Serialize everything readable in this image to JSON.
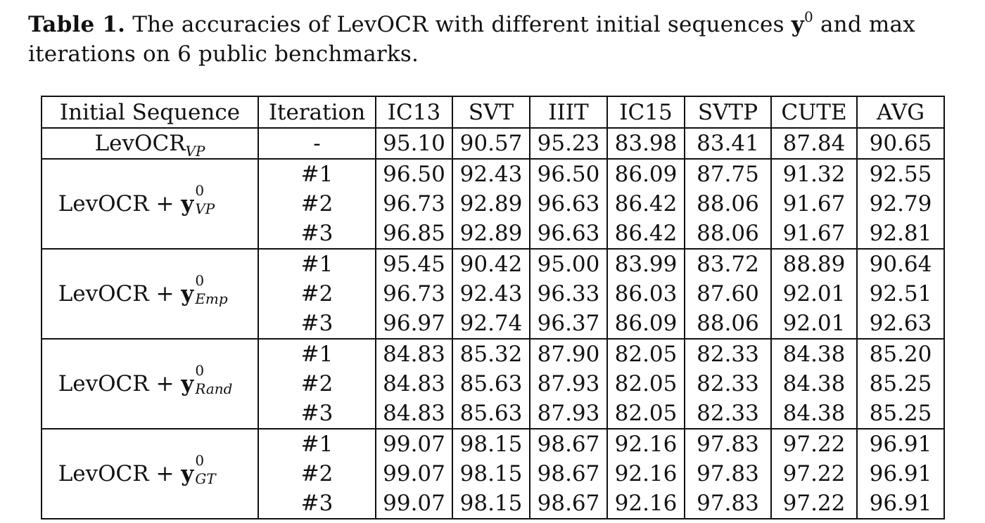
{
  "caption": {
    "label": "Table 1.",
    "text_before": "The accuracies of LevOCR with different initial sequences",
    "symbol": "y",
    "superscript": "0",
    "text_after": "and max iterations on 6 public benchmarks."
  },
  "table": {
    "headers": [
      "Initial Sequence",
      "Iteration",
      "IC13",
      "SVT",
      "IIIT",
      "IC15",
      "SVTP",
      "CUTE",
      "AVG"
    ],
    "baseline": {
      "label": "LevOCR",
      "label_sub": "VP",
      "iteration": "-",
      "values": [
        "95.10",
        "90.57",
        "95.23",
        "83.98",
        "83.41",
        "87.84",
        "90.65"
      ]
    },
    "groups": [
      {
        "prefix": "LevOCR + ",
        "symbol": "y",
        "sup": "0",
        "sub": "VP",
        "rows": [
          {
            "iteration": "#1",
            "values": [
              "96.50",
              "92.43",
              "96.50",
              "86.09",
              "87.75",
              "91.32",
              "92.55"
            ]
          },
          {
            "iteration": "#2",
            "values": [
              "96.73",
              "92.89",
              "96.63",
              "86.42",
              "88.06",
              "91.67",
              "92.79"
            ]
          },
          {
            "iteration": "#3",
            "values": [
              "96.85",
              "92.89",
              "96.63",
              "86.42",
              "88.06",
              "91.67",
              "92.81"
            ]
          }
        ]
      },
      {
        "prefix": "LevOCR + ",
        "symbol": "y",
        "sup": "0",
        "sub": "Emp",
        "rows": [
          {
            "iteration": "#1",
            "values": [
              "95.45",
              "90.42",
              "95.00",
              "83.99",
              "83.72",
              "88.89",
              "90.64"
            ]
          },
          {
            "iteration": "#2",
            "values": [
              "96.73",
              "92.43",
              "96.33",
              "86.03",
              "87.60",
              "92.01",
              "92.51"
            ]
          },
          {
            "iteration": "#3",
            "values": [
              "96.97",
              "92.74",
              "96.37",
              "86.09",
              "88.06",
              "92.01",
              "92.63"
            ]
          }
        ]
      },
      {
        "prefix": "LevOCR + ",
        "symbol": "y",
        "sup": "0",
        "sub": "Rand",
        "rows": [
          {
            "iteration": "#1",
            "values": [
              "84.83",
              "85.32",
              "87.90",
              "82.05",
              "82.33",
              "84.38",
              "85.20"
            ]
          },
          {
            "iteration": "#2",
            "values": [
              "84.83",
              "85.63",
              "87.93",
              "82.05",
              "82.33",
              "84.38",
              "85.25"
            ]
          },
          {
            "iteration": "#3",
            "values": [
              "84.83",
              "85.63",
              "87.93",
              "82.05",
              "82.33",
              "84.38",
              "85.25"
            ]
          }
        ]
      },
      {
        "prefix": "LevOCR + ",
        "symbol": "y",
        "sup": "0",
        "sub": "GT",
        "rows": [
          {
            "iteration": "#1",
            "values": [
              "99.07",
              "98.15",
              "98.67",
              "92.16",
              "97.83",
              "97.22",
              "96.91"
            ]
          },
          {
            "iteration": "#2",
            "values": [
              "99.07",
              "98.15",
              "98.67",
              "92.16",
              "97.83",
              "97.22",
              "96.91"
            ]
          },
          {
            "iteration": "#3",
            "values": [
              "99.07",
              "98.15",
              "98.67",
              "92.16",
              "97.83",
              "97.22",
              "96.91"
            ]
          }
        ]
      }
    ]
  }
}
